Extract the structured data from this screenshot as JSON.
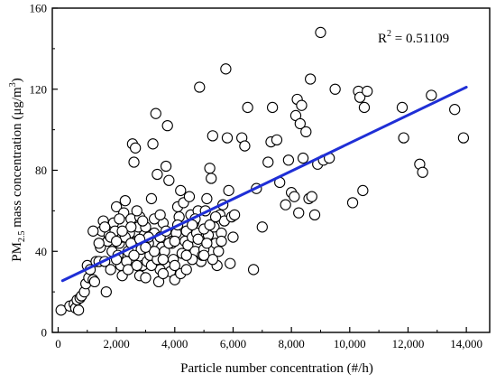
{
  "chart_data": {
    "type": "scatter",
    "xlabel": "Particle number concentration (#/h)",
    "ylabel_parts": {
      "pre": "PM",
      "sub": "2.5",
      "mid": " mass concentration (μg/m",
      "sup": "3",
      "post": ")"
    },
    "annotation": {
      "pre": "R",
      "sup": "2",
      "post": " = 0.51109"
    },
    "xlim": [
      -200,
      14800
    ],
    "ylim": [
      0,
      160
    ],
    "x_ticks": [
      0,
      2000,
      4000,
      6000,
      8000,
      10000,
      12000,
      14000
    ],
    "x_tick_labels": [
      "0",
      "2,000",
      "4,000",
      "6,000",
      "8,000",
      "10,000",
      "12,000",
      "14,000"
    ],
    "y_ticks": [
      0,
      40,
      80,
      120,
      160
    ],
    "y_tick_labels": [
      "0",
      "40",
      "80",
      "120",
      "160"
    ],
    "grid": false,
    "marker": "open-circle",
    "fit_line": {
      "x": [
        150,
        14000
      ],
      "y": [
        25.5,
        121
      ],
      "color": "#1f2fd6"
    },
    "points": [
      [
        100,
        11
      ],
      [
        400,
        13
      ],
      [
        550,
        14
      ],
      [
        600,
        12
      ],
      [
        700,
        11
      ],
      [
        650,
        16
      ],
      [
        750,
        17
      ],
      [
        800,
        18
      ],
      [
        900,
        20
      ],
      [
        950,
        24
      ],
      [
        1000,
        33
      ],
      [
        1050,
        27
      ],
      [
        1100,
        31
      ],
      [
        1200,
        26
      ],
      [
        1250,
        25
      ],
      [
        1300,
        35
      ],
      [
        1400,
        35
      ],
      [
        1450,
        42
      ],
      [
        1500,
        50
      ],
      [
        1550,
        55
      ],
      [
        1600,
        35
      ],
      [
        1650,
        20
      ],
      [
        1700,
        45
      ],
      [
        1750,
        48
      ],
      [
        1800,
        31
      ],
      [
        1850,
        40
      ],
      [
        1900,
        54
      ],
      [
        1950,
        50
      ],
      [
        2000,
        62
      ],
      [
        2050,
        38
      ],
      [
        2100,
        44
      ],
      [
        2150,
        33
      ],
      [
        2200,
        47
      ],
      [
        2250,
        59
      ],
      [
        2300,
        65
      ],
      [
        2350,
        35
      ],
      [
        2400,
        40
      ],
      [
        2450,
        49
      ],
      [
        2500,
        56
      ],
      [
        2550,
        93
      ],
      [
        2600,
        84
      ],
      [
        2650,
        91
      ],
      [
        2700,
        45
      ],
      [
        2750,
        52
      ],
      [
        2800,
        57
      ],
      [
        2850,
        41
      ],
      [
        2900,
        33
      ],
      [
        2950,
        48
      ],
      [
        3000,
        52
      ],
      [
        3050,
        35
      ],
      [
        3100,
        44
      ],
      [
        3150,
        38
      ],
      [
        3200,
        66
      ],
      [
        3250,
        93
      ],
      [
        3300,
        49
      ],
      [
        3350,
        108
      ],
      [
        3400,
        78
      ],
      [
        3450,
        25
      ],
      [
        3500,
        31
      ],
      [
        3550,
        42
      ],
      [
        3600,
        54
      ],
      [
        3650,
        40
      ],
      [
        3700,
        82
      ],
      [
        3750,
        102
      ],
      [
        3800,
        75
      ],
      [
        3850,
        30
      ],
      [
        3900,
        44
      ],
      [
        3950,
        36
      ],
      [
        4000,
        26
      ],
      [
        4050,
        49
      ],
      [
        4100,
        62
      ],
      [
        4150,
        57
      ],
      [
        4200,
        70
      ],
      [
        4250,
        39
      ],
      [
        4300,
        64
      ],
      [
        4350,
        45
      ],
      [
        4400,
        50
      ],
      [
        4450,
        43
      ],
      [
        4500,
        67
      ],
      [
        4550,
        58
      ],
      [
        4600,
        47
      ],
      [
        4650,
        54
      ],
      [
        4700,
        40
      ],
      [
        4750,
        49
      ],
      [
        4800,
        60
      ],
      [
        4850,
        121
      ],
      [
        4900,
        35
      ],
      [
        4950,
        38
      ],
      [
        5000,
        41
      ],
      [
        5050,
        60
      ],
      [
        5100,
        66
      ],
      [
        5150,
        48
      ],
      [
        5200,
        81
      ],
      [
        5250,
        76
      ],
      [
        5300,
        97
      ],
      [
        5350,
        52
      ],
      [
        5400,
        44
      ],
      [
        5450,
        33
      ],
      [
        5500,
        40
      ],
      [
        5550,
        58
      ],
      [
        5600,
        49
      ],
      [
        5650,
        63
      ],
      [
        5700,
        55
      ],
      [
        5750,
        130
      ],
      [
        5800,
        96
      ],
      [
        5850,
        70
      ],
      [
        5900,
        34
      ],
      [
        5950,
        57
      ],
      [
        6000,
        47
      ],
      [
        6050,
        58
      ],
      [
        6300,
        96
      ],
      [
        6400,
        92
      ],
      [
        6500,
        111
      ],
      [
        6700,
        31
      ],
      [
        6800,
        71
      ],
      [
        7000,
        52
      ],
      [
        7200,
        84
      ],
      [
        7300,
        94
      ],
      [
        7350,
        111
      ],
      [
        7500,
        95
      ],
      [
        7600,
        74
      ],
      [
        7800,
        63
      ],
      [
        7900,
        85
      ],
      [
        8000,
        69
      ],
      [
        8100,
        67
      ],
      [
        8150,
        107
      ],
      [
        8200,
        115
      ],
      [
        8250,
        59
      ],
      [
        8300,
        103
      ],
      [
        8350,
        112
      ],
      [
        8400,
        86
      ],
      [
        8500,
        99
      ],
      [
        8600,
        66
      ],
      [
        8650,
        125
      ],
      [
        8700,
        67
      ],
      [
        8800,
        58
      ],
      [
        8900,
        83
      ],
      [
        9000,
        148
      ],
      [
        9100,
        85
      ],
      [
        9300,
        86
      ],
      [
        9500,
        120
      ],
      [
        10100,
        64
      ],
      [
        10300,
        119
      ],
      [
        10350,
        116
      ],
      [
        10450,
        70
      ],
      [
        10500,
        111
      ],
      [
        10600,
        119
      ],
      [
        11800,
        111
      ],
      [
        11850,
        96
      ],
      [
        12400,
        83
      ],
      [
        12500,
        79
      ],
      [
        12800,
        117
      ],
      [
        13600,
        110
      ],
      [
        13900,
        96
      ],
      [
        2300,
        47
      ],
      [
        2500,
        52
      ],
      [
        2700,
        60
      ],
      [
        2900,
        55
      ],
      [
        3100,
        47
      ],
      [
        3300,
        56
      ],
      [
        3500,
        47
      ],
      [
        3700,
        50
      ],
      [
        3900,
        45
      ],
      [
        4100,
        53
      ],
      [
        1800,
        47
      ],
      [
        2000,
        45
      ],
      [
        2200,
        28
      ],
      [
        2400,
        31
      ],
      [
        2600,
        38
      ],
      [
        2800,
        28
      ],
      [
        3000,
        27
      ],
      [
        3200,
        33
      ],
      [
        3400,
        36
      ],
      [
        3600,
        29
      ],
      [
        4200,
        29
      ],
      [
        4400,
        31
      ],
      [
        4600,
        36
      ],
      [
        4800,
        46
      ],
      [
        5000,
        51
      ],
      [
        5200,
        53
      ],
      [
        5400,
        57
      ],
      [
        5600,
        45
      ],
      [
        1600,
        52
      ],
      [
        2100,
        56
      ],
      [
        3800,
        44
      ],
      [
        4000,
        33
      ],
      [
        4400,
        38
      ],
      [
        4700,
        56
      ],
      [
        5100,
        44
      ],
      [
        5300,
        36
      ],
      [
        2500,
        44
      ],
      [
        2700,
        33
      ],
      [
        3300,
        40
      ],
      [
        3500,
        58
      ],
      [
        1200,
        50
      ],
      [
        1400,
        44
      ],
      [
        2000,
        36
      ],
      [
        2200,
        50
      ],
      [
        2800,
        46
      ],
      [
        3000,
        42
      ],
      [
        3600,
        36
      ],
      [
        4000,
        45
      ],
      [
        4600,
        53
      ],
      [
        5000,
        38
      ]
    ]
  }
}
